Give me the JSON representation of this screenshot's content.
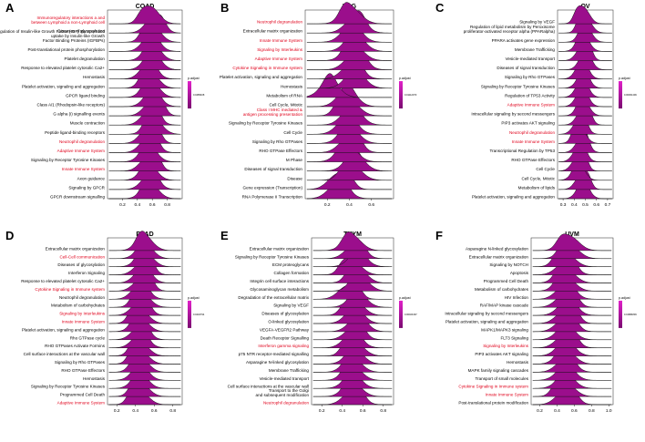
{
  "accent_color": "#9b0e8c",
  "highlight_color": "#e0001a",
  "chart_data": [
    {
      "type": "ridgeline",
      "panel": "A",
      "title": "COAD",
      "legend_title": "p.adjust",
      "legend_tick": "0.0485408",
      "xlim": [
        0.0,
        1.0
      ],
      "xticks": [
        "0.2",
        "0.4",
        "0.6",
        "0.8"
      ],
      "categories": [
        {
          "label": "Immunoregulatory interactions between a Lymphoid and a non-Lymphoid cell",
          "highlighted": true,
          "peak": 0.58
        },
        {
          "label": "Diseases of glycosylation",
          "highlighted": false,
          "peak": 0.62
        },
        {
          "label": "Regulation of Insulin-like Growth Factor (IGF) transport and uptake by Insulin-like Growth Factor Binding Proteins (IGFBPs)",
          "highlighted": false,
          "peak": 0.6
        },
        {
          "label": "Post-translational protein phosphorylation",
          "highlighted": false,
          "peak": 0.58
        },
        {
          "label": "Platelet degranulation",
          "highlighted": false,
          "peak": 0.6
        },
        {
          "label": "Response to elevated platelet cytosolic Ca2+",
          "highlighted": false,
          "peak": 0.6
        },
        {
          "label": "Hemostasis",
          "highlighted": false,
          "peak": 0.55
        },
        {
          "label": "Platelet activation, signaling and aggregation",
          "highlighted": false,
          "peak": 0.57
        },
        {
          "label": "GPCR ligand binding",
          "highlighted": false,
          "peak": 0.58
        },
        {
          "label": "Class A/1 (Rhodopsin-like receptors)",
          "highlighted": false,
          "peak": 0.6
        },
        {
          "label": "G alpha (i) signalling events",
          "highlighted": false,
          "peak": 0.6
        },
        {
          "label": "Muscle contraction",
          "highlighted": false,
          "peak": 0.57
        },
        {
          "label": "Peptide ligand-binding receptors",
          "highlighted": false,
          "peak": 0.62
        },
        {
          "label": "Neutrophil degranulation",
          "highlighted": true,
          "peak": 0.55
        },
        {
          "label": "Adaptive Immune System",
          "highlighted": true,
          "peak": 0.55
        },
        {
          "label": "Signaling by Receptor Tyrosine Kinases",
          "highlighted": false,
          "peak": 0.55
        },
        {
          "label": "Innate Immune System",
          "highlighted": true,
          "peak": 0.55
        },
        {
          "label": "Axon guidance",
          "highlighted": false,
          "peak": 0.55
        },
        {
          "label": "Signaling by GPCR",
          "highlighted": false,
          "peak": 0.57
        },
        {
          "label": "GPCR downstream signalling",
          "highlighted": false,
          "peak": 0.57
        }
      ]
    },
    {
      "type": "ridgeline",
      "panel": "B",
      "title": "LGG",
      "legend_title": "p.adjust",
      "legend_tick": "0.01112073",
      "xlim": [
        0.0,
        0.8
      ],
      "xticks": [
        "0.2",
        "0.4",
        "0.6"
      ],
      "categories": [
        {
          "label": "Neutrophil degranulation",
          "highlighted": true,
          "peak": 0.42
        },
        {
          "label": "Extracellular matrix organization",
          "highlighted": false,
          "peak": 0.45
        },
        {
          "label": "Innate Immune System",
          "highlighted": true,
          "peak": 0.42
        },
        {
          "label": "Signaling by Interleukins",
          "highlighted": true,
          "peak": 0.45
        },
        {
          "label": "Adaptive Immune System",
          "highlighted": true,
          "peak": 0.44
        },
        {
          "label": "Cytokine Signaling in Immune system",
          "highlighted": true,
          "peak": 0.45
        },
        {
          "label": "Platelet activation, signaling and aggregation",
          "highlighted": false,
          "peak": 0.42
        },
        {
          "label": "Hemostasis",
          "highlighted": false,
          "peak": 0.45
        },
        {
          "label": "Metabolism of RNA",
          "highlighted": false,
          "peak": 0.22
        },
        {
          "label": "Cell Cycle, Mitotic",
          "highlighted": false,
          "peak": 0.38
        },
        {
          "label": "Class I MHC mediated antigen processing & presentation",
          "highlighted": true,
          "peak": 0.4
        },
        {
          "label": "Signaling by Receptor Tyrosine Kinases",
          "highlighted": false,
          "peak": 0.42
        },
        {
          "label": "Cell Cycle",
          "highlighted": false,
          "peak": 0.38
        },
        {
          "label": "Signaling by Rho GTPases",
          "highlighted": false,
          "peak": 0.4
        },
        {
          "label": "RHO GTPase Effectors",
          "highlighted": false,
          "peak": 0.4
        },
        {
          "label": "M Phase",
          "highlighted": false,
          "peak": 0.38
        },
        {
          "label": "Diseases of signal transduction",
          "highlighted": false,
          "peak": 0.45
        },
        {
          "label": "Disease",
          "highlighted": false,
          "peak": 0.42
        },
        {
          "label": "Gene expression (Transcription)",
          "highlighted": false,
          "peak": 0.3
        },
        {
          "label": "RNA Polymerase II Transcription",
          "highlighted": false,
          "peak": 0.3
        }
      ]
    },
    {
      "type": "ridgeline",
      "panel": "C",
      "title": "OV",
      "legend_title": "p.adjust",
      "legend_tick": "0.00061409",
      "xlim": [
        0.25,
        0.75
      ],
      "xticks": [
        "0.3",
        "0.4",
        "0.5",
        "0.6",
        "0.7"
      ],
      "categories": [
        {
          "label": "Signaling by VEGF",
          "highlighted": false,
          "peak": 0.48
        },
        {
          "label": "Regulation of lipid metabolism by Peroxisome proliferator-activated receptor alpha (PPARalpha)",
          "highlighted": false,
          "peak": 0.5
        },
        {
          "label": "PPARA activates gene expression",
          "highlighted": false,
          "peak": 0.5
        },
        {
          "label": "Membrane Trafficking",
          "highlighted": false,
          "peak": 0.48
        },
        {
          "label": "Vesicle-mediated transport",
          "highlighted": false,
          "peak": 0.48
        },
        {
          "label": "Diseases of signal transduction",
          "highlighted": false,
          "peak": 0.5
        },
        {
          "label": "Signaling by Rho GTPases",
          "highlighted": false,
          "peak": 0.47
        },
        {
          "label": "Signaling by Receptor Tyrosine Kinases",
          "highlighted": false,
          "peak": 0.48
        },
        {
          "label": "Regulation of TP53 Activity",
          "highlighted": false,
          "peak": 0.47
        },
        {
          "label": "Adaptive Immune System",
          "highlighted": true,
          "peak": 0.47
        },
        {
          "label": "Intracellular signaling by second messengers",
          "highlighted": false,
          "peak": 0.48
        },
        {
          "label": "PIP3 activates AKT signaling",
          "highlighted": false,
          "peak": 0.48
        },
        {
          "label": "Neutrophil degranulation",
          "highlighted": true,
          "peak": 0.45
        },
        {
          "label": "Innate Immune System",
          "highlighted": true,
          "peak": 0.45
        },
        {
          "label": "Transcriptional Regulation by TP53",
          "highlighted": false,
          "peak": 0.47
        },
        {
          "label": "RHO GTPase Effectors",
          "highlighted": false,
          "peak": 0.45
        },
        {
          "label": "Cell Cycle",
          "highlighted": false,
          "peak": 0.44
        },
        {
          "label": "Cell Cycle, Mitotic",
          "highlighted": false,
          "peak": 0.44
        },
        {
          "label": "Metabolism of lipids",
          "highlighted": false,
          "peak": 0.47
        },
        {
          "label": "Platelet activation, signaling and aggregation",
          "highlighted": false,
          "peak": 0.48
        }
      ]
    },
    {
      "type": "ridgeline",
      "panel": "D",
      "title": "PAAD",
      "legend_title": "p.adjust",
      "legend_tick": "0.0432794",
      "xlim": [
        0.1,
        0.9
      ],
      "xticks": [
        "0.2",
        "0.4",
        "0.6",
        "0.8"
      ],
      "categories": [
        {
          "label": "Extracellular matrix organization",
          "highlighted": false,
          "peak": 0.5
        },
        {
          "label": "Cell-Cell communication",
          "highlighted": true,
          "peak": 0.5
        },
        {
          "label": "Diseases of glycosylation",
          "highlighted": false,
          "peak": 0.5
        },
        {
          "label": "Interferon Signaling",
          "highlighted": false,
          "peak": 0.48
        },
        {
          "label": "Response to elevated platelet cytosolic Ca2+",
          "highlighted": false,
          "peak": 0.48
        },
        {
          "label": "Cytokine Signaling in Immune system",
          "highlighted": true,
          "peak": 0.47
        },
        {
          "label": "Neutrophil degranulation",
          "highlighted": false,
          "peak": 0.45
        },
        {
          "label": "Metabolism of carbohydrates",
          "highlighted": false,
          "peak": 0.47
        },
        {
          "label": "Signaling by Interleukins",
          "highlighted": true,
          "peak": 0.45
        },
        {
          "label": "Innate Immune System",
          "highlighted": true,
          "peak": 0.45
        },
        {
          "label": "Platelet activation, signaling and aggregation",
          "highlighted": false,
          "peak": 0.45
        },
        {
          "label": "Rho GTPase cycle",
          "highlighted": false,
          "peak": 0.45
        },
        {
          "label": "RHO GTPases Activate Formins",
          "highlighted": false,
          "peak": 0.45
        },
        {
          "label": "Cell surface interactions at the vascular wall",
          "highlighted": false,
          "peak": 0.45
        },
        {
          "label": "Signaling by Rho GTPases",
          "highlighted": false,
          "peak": 0.45
        },
        {
          "label": "RHO GTPase Effectors",
          "highlighted": false,
          "peak": 0.45
        },
        {
          "label": "Hemostasis",
          "highlighted": false,
          "peak": 0.45
        },
        {
          "label": "Signaling by Receptor Tyrosine Kinases",
          "highlighted": false,
          "peak": 0.45
        },
        {
          "label": "Programmed Cell Death",
          "highlighted": false,
          "peak": 0.45
        },
        {
          "label": "Adaptive Immune System",
          "highlighted": true,
          "peak": 0.45
        }
      ]
    },
    {
      "type": "ridgeline",
      "panel": "E",
      "title": "THYM",
      "legend_title": "p.adjust",
      "legend_tick": "0.00020167",
      "xlim": [
        0.1,
        0.9
      ],
      "xticks": [
        "0.2",
        "0.4",
        "0.6",
        "0.8"
      ],
      "categories": [
        {
          "label": "Extracellular matrix organization",
          "highlighted": false,
          "peak": 0.5
        },
        {
          "label": "Signaling by Receptor Tyrosine Kinases",
          "highlighted": false,
          "peak": 0.52
        },
        {
          "label": "ECM proteoglycans",
          "highlighted": false,
          "peak": 0.55
        },
        {
          "label": "Collagen formation",
          "highlighted": false,
          "peak": 0.5
        },
        {
          "label": "Integrin cell surface interactions",
          "highlighted": false,
          "peak": 0.55
        },
        {
          "label": "Glycosaminoglycan metabolism",
          "highlighted": false,
          "peak": 0.57
        },
        {
          "label": "Degradation of the extracellular matrix",
          "highlighted": false,
          "peak": 0.45
        },
        {
          "label": "Signaling by VEGF",
          "highlighted": false,
          "peak": 0.55
        },
        {
          "label": "Diseases of glycosylation",
          "highlighted": false,
          "peak": 0.52
        },
        {
          "label": "O-linked glycosylation",
          "highlighted": false,
          "peak": 0.52
        },
        {
          "label": "VEGFA-VEGFR2 Pathway",
          "highlighted": false,
          "peak": 0.55
        },
        {
          "label": "Death Receptor Signalling",
          "highlighted": false,
          "peak": 0.52
        },
        {
          "label": "Interferon gamma signaling",
          "highlighted": true,
          "peak": 0.5
        },
        {
          "label": "p75 NTR receptor-mediated signalling",
          "highlighted": false,
          "peak": 0.52
        },
        {
          "label": "Asparagine N-linked glycosylation",
          "highlighted": false,
          "peak": 0.52
        },
        {
          "label": "Membrane Trafficking",
          "highlighted": false,
          "peak": 0.5
        },
        {
          "label": "Vesicle-mediated transport",
          "highlighted": false,
          "peak": 0.5
        },
        {
          "label": "Cell surface interactions at the vascular wall",
          "highlighted": false,
          "peak": 0.5
        },
        {
          "label": "Transport to the Golgi and subsequent modification",
          "highlighted": false,
          "peak": 0.5
        },
        {
          "label": "Neutrophil degranulation",
          "highlighted": true,
          "peak": 0.5
        }
      ]
    },
    {
      "type": "ridgeline",
      "panel": "F",
      "title": "UVM",
      "legend_title": "p.adjust",
      "legend_tick": "0.01884839",
      "xlim": [
        0.1,
        1.05
      ],
      "xticks": [
        "0.2",
        "0.4",
        "0.6",
        "0.8",
        "1.0"
      ],
      "categories": [
        {
          "label": "Asparagine N-linked glycosylation",
          "highlighted": false,
          "peak": 0.55
        },
        {
          "label": "Extracellular matrix organization",
          "highlighted": false,
          "peak": 0.55
        },
        {
          "label": "Signaling by NOTCH",
          "highlighted": false,
          "peak": 0.5
        },
        {
          "label": "Apoptosis",
          "highlighted": false,
          "peak": 0.5
        },
        {
          "label": "Programmed Cell Death",
          "highlighted": false,
          "peak": 0.5
        },
        {
          "label": "Metabolism of carbohydrates",
          "highlighted": false,
          "peak": 0.5
        },
        {
          "label": "HIV Infection",
          "highlighted": false,
          "peak": 0.5
        },
        {
          "label": "RAF/MAP kinase cascade",
          "highlighted": false,
          "peak": 0.5
        },
        {
          "label": "Intracellular signaling by second messengers",
          "highlighted": false,
          "peak": 0.52
        },
        {
          "label": "Platelet activation, signaling and aggregation",
          "highlighted": false,
          "peak": 0.5
        },
        {
          "label": "MAPK1/MAPK3 signaling",
          "highlighted": false,
          "peak": 0.5
        },
        {
          "label": "FLT3 Signaling",
          "highlighted": false,
          "peak": 0.5
        },
        {
          "label": "Signaling by Interleukins",
          "highlighted": true,
          "peak": 0.5
        },
        {
          "label": "PIP3 activates AKT signaling",
          "highlighted": false,
          "peak": 0.5
        },
        {
          "label": "Hemostasis",
          "highlighted": false,
          "peak": 0.5
        },
        {
          "label": "MAPK family signaling cascades",
          "highlighted": false,
          "peak": 0.5
        },
        {
          "label": "Transport of small molecules",
          "highlighted": false,
          "peak": 0.5
        },
        {
          "label": "Cytokine Signaling in Immune system",
          "highlighted": true,
          "peak": 0.5
        },
        {
          "label": "Innate Immune System",
          "highlighted": true,
          "peak": 0.5
        },
        {
          "label": "Post-translational protein modification",
          "highlighted": false,
          "peak": 0.5
        }
      ]
    }
  ]
}
